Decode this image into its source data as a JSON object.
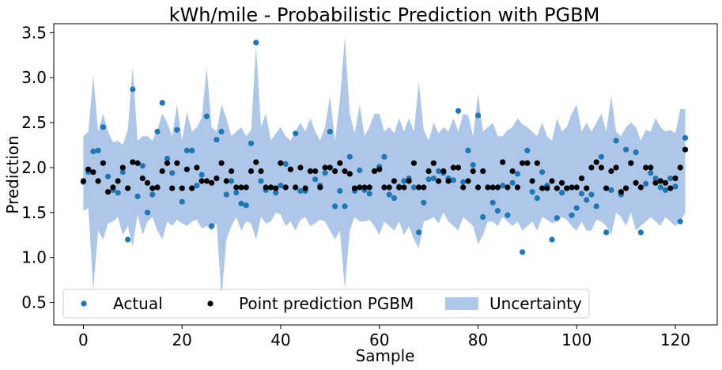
{
  "chart_data": {
    "type": "scatter",
    "title": "kWh/mile - Probabilistic Prediction with PGBM",
    "xlabel": "Sample",
    "ylabel": "Prediction",
    "xlim": [
      -6,
      128.5
    ],
    "ylim": [
      0.25,
      3.6
    ],
    "xticks": [
      0,
      20,
      40,
      60,
      80,
      100,
      120
    ],
    "yticks": [
      0.5,
      1.0,
      1.5,
      2.0,
      2.5,
      3.0,
      3.5
    ],
    "xtick_labels": [
      "0",
      "20",
      "40",
      "60",
      "80",
      "100",
      "120"
    ],
    "ytick_labels": [
      "0.5",
      "1.0",
      "1.5",
      "2.0",
      "2.5",
      "3.0",
      "3.5"
    ],
    "grid": false,
    "legend_position": "bottom-left",
    "legend": [
      {
        "label": "Actual",
        "marker": "dot",
        "color": "#1f77b4"
      },
      {
        "label": "Point prediction PGBM",
        "marker": "dot",
        "color": "#000000"
      },
      {
        "label": "Uncertainty",
        "marker": "patch",
        "color": "#aec7e8"
      }
    ],
    "colors": {
      "actual": "#1f77b4",
      "point": "#000000",
      "uncertainty": "#aec7e8"
    },
    "x": [
      0,
      1,
      2,
      3,
      4,
      5,
      6,
      7,
      8,
      9,
      10,
      11,
      12,
      13,
      14,
      15,
      16,
      17,
      18,
      19,
      20,
      21,
      22,
      23,
      24,
      25,
      26,
      27,
      28,
      29,
      30,
      31,
      32,
      33,
      34,
      35,
      36,
      37,
      38,
      39,
      40,
      41,
      42,
      43,
      44,
      45,
      46,
      47,
      48,
      49,
      50,
      51,
      52,
      53,
      54,
      55,
      56,
      57,
      58,
      59,
      60,
      61,
      62,
      63,
      64,
      65,
      66,
      67,
      68,
      69,
      70,
      71,
      72,
      73,
      74,
      75,
      76,
      77,
      78,
      79,
      80,
      81,
      82,
      83,
      84,
      85,
      86,
      87,
      88,
      89,
      90,
      91,
      92,
      93,
      94,
      95,
      96,
      97,
      98,
      99,
      100,
      101,
      102,
      103,
      104,
      105,
      106,
      107,
      108,
      109,
      110,
      111,
      112,
      113,
      114,
      115,
      116,
      117,
      118,
      119,
      120,
      121,
      122
    ],
    "series": [
      {
        "name": "Actual",
        "values": [
          1.84,
          1.95,
          2.18,
          2.19,
          2.45,
          1.9,
          1.75,
          1.72,
          1.95,
          1.2,
          2.87,
          1.68,
          2.02,
          1.5,
          1.7,
          2.4,
          2.72,
          2.1,
          1.94,
          2.42,
          1.62,
          2.19,
          2.19,
          1.8,
          1.92,
          2.57,
          1.35,
          2.31,
          2.4,
          1.7,
          1.85,
          1.72,
          1.6,
          1.58,
          2.27,
          3.39,
          1.85,
          1.75,
          1.78,
          1.72,
          1.8,
          2.04,
          1.98,
          2.38,
          1.74,
          1.74,
          1.96,
          1.87,
          1.8,
          1.94,
          2.4,
          1.57,
          1.74,
          1.57,
          2.12,
          1.74,
          1.97,
          1.75,
          1.71,
          1.96,
          2.01,
          2.12,
          1.7,
          1.66,
          1.79,
          1.85,
          1.88,
          1.78,
          1.28,
          1.61,
          1.87,
          1.88,
          1.96,
          1.94,
          1.88,
          1.86,
          2.63,
          1.84,
          2.19,
          2.03,
          2.58,
          1.45,
          1.78,
          1.61,
          1.52,
          1.8,
          1.47,
          1.83,
          1.93,
          1.06,
          2.19,
          1.73,
          1.66,
          1.95,
          1.8,
          1.2,
          1.44,
          1.72,
          1.77,
          1.47,
          1.55,
          1.71,
          1.64,
          1.7,
          1.57,
          2.12,
          1.28,
          1.75,
          2.3,
          1.7,
          2.2,
          2.05,
          2.17,
          1.28,
          1.82,
          1.94,
          1.88,
          1.78,
          1.75,
          1.88,
          1.79,
          1.4,
          2.33
        ]
      },
      {
        "name": "Point prediction PGBM",
        "values": [
          1.85,
          1.98,
          1.95,
          1.85,
          2.05,
          1.73,
          1.78,
          1.85,
          2.0,
          1.77,
          2.06,
          2.05,
          1.88,
          1.83,
          1.77,
          1.78,
          1.96,
          2.05,
          1.77,
          2.05,
          1.77,
          1.98,
          1.77,
          2.0,
          1.85,
          1.85,
          1.83,
          1.88,
          2.05,
          1.85,
          1.96,
          1.78,
          1.78,
          1.78,
          1.96,
          2.06,
          1.96,
          1.78,
          1.78,
          1.77,
          2.05,
          1.78,
          1.98,
          1.78,
          2.0,
          1.77,
          1.96,
          1.96,
          1.78,
          2.0,
          2.0,
          1.96,
          2.05,
          1.96,
          1.93,
          1.77,
          1.78,
          1.78,
          1.78,
          1.96,
          1.98,
          1.78,
          1.78,
          1.85,
          1.78,
          1.78,
          1.85,
          2.05,
          1.78,
          1.78,
          1.96,
          2.05,
          1.85,
          1.96,
          1.85,
          2.0,
          2.0,
          1.78,
          1.85,
          1.96,
          1.78,
          1.96,
          1.78,
          1.78,
          1.78,
          2.06,
          1.78,
          1.96,
          1.78,
          2.05,
          2.05,
          1.85,
          2.05,
          1.77,
          1.77,
          1.85,
          1.77,
          1.83,
          1.77,
          1.78,
          1.78,
          1.88,
          1.77,
          2.0,
          2.06,
          2.0,
          1.77,
          1.96,
          2.0,
          1.73,
          1.77,
          2.05,
          1.83,
          1.78,
          2.0,
          2.0,
          1.83,
          1.85,
          1.83,
          1.77,
          1.88,
          2.0,
          2.2
        ]
      },
      {
        "name": "Uncertainty",
        "lower": [
          1.52,
          1.55,
          0.63,
          1.3,
          1.2,
          1.38,
          1.4,
          1.45,
          1.25,
          1.35,
          1.12,
          1.48,
          1.25,
          1.4,
          1.45,
          1.3,
          1.2,
          1.4,
          1.35,
          1.42,
          1.38,
          1.35,
          1.4,
          1.42,
          1.32,
          1.35,
          1.3,
          1.38,
          0.55,
          1.2,
          1.35,
          1.45,
          1.3,
          1.4,
          1.38,
          1.2,
          1.45,
          1.38,
          1.4,
          1.5,
          1.48,
          1.35,
          1.4,
          1.3,
          1.42,
          1.45,
          1.35,
          1.38,
          1.42,
          1.4,
          1.3,
          1.2,
          1.3,
          0.65,
          1.3,
          1.45,
          1.4,
          1.4,
          1.42,
          1.35,
          1.25,
          1.4,
          1.35,
          1.3,
          1.4,
          1.25,
          1.35,
          1.2,
          1.1,
          1.4,
          1.42,
          1.45,
          1.38,
          1.5,
          1.4,
          1.35,
          1.3,
          1.45,
          1.4,
          1.35,
          1.15,
          1.25,
          1.4,
          1.4,
          1.35,
          1.45,
          1.4,
          1.35,
          1.4,
          1.3,
          1.35,
          1.4,
          1.3,
          1.45,
          1.42,
          1.38,
          1.4,
          1.45,
          1.42,
          1.35,
          1.3,
          1.4,
          1.3,
          1.3,
          1.42,
          1.4,
          1.35,
          1.25,
          1.5,
          1.45,
          1.35,
          1.5,
          1.3,
          1.35,
          1.4,
          1.45,
          1.4,
          1.35,
          1.45,
          1.4,
          1.35,
          1.4,
          1.5
        ],
        "upper": [
          2.35,
          2.4,
          3.02,
          2.4,
          2.6,
          2.4,
          2.28,
          2.3,
          2.25,
          2.42,
          3.12,
          2.3,
          2.35,
          2.35,
          2.3,
          2.42,
          2.6,
          2.5,
          2.35,
          2.7,
          2.3,
          2.62,
          2.4,
          2.45,
          2.55,
          3.12,
          2.45,
          2.4,
          2.7,
          2.55,
          2.35,
          2.4,
          2.45,
          2.35,
          2.42,
          3.35,
          2.45,
          2.6,
          2.3,
          2.38,
          2.45,
          2.35,
          2.3,
          2.4,
          2.5,
          2.4,
          2.55,
          2.4,
          2.3,
          2.45,
          2.8,
          2.3,
          2.75,
          3.45,
          2.6,
          2.38,
          2.7,
          2.35,
          2.45,
          2.6,
          2.6,
          2.4,
          2.45,
          2.38,
          2.55,
          2.4,
          2.55,
          2.4,
          2.95,
          2.42,
          2.3,
          2.5,
          2.38,
          2.45,
          2.4,
          2.55,
          2.4,
          2.6,
          2.58,
          2.35,
          2.82,
          2.4,
          2.45,
          2.5,
          2.35,
          2.35,
          2.42,
          2.45,
          2.55,
          2.48,
          2.45,
          2.4,
          2.35,
          2.5,
          2.35,
          2.3,
          2.55,
          2.4,
          2.45,
          2.6,
          2.7,
          2.4,
          2.5,
          2.4,
          2.5,
          2.6,
          2.4,
          2.8,
          2.4,
          2.35,
          2.45,
          2.5,
          2.45,
          2.3,
          2.42,
          2.4,
          2.55,
          2.45,
          2.4,
          2.42,
          2.38,
          2.65,
          2.65
        ]
      }
    ]
  }
}
